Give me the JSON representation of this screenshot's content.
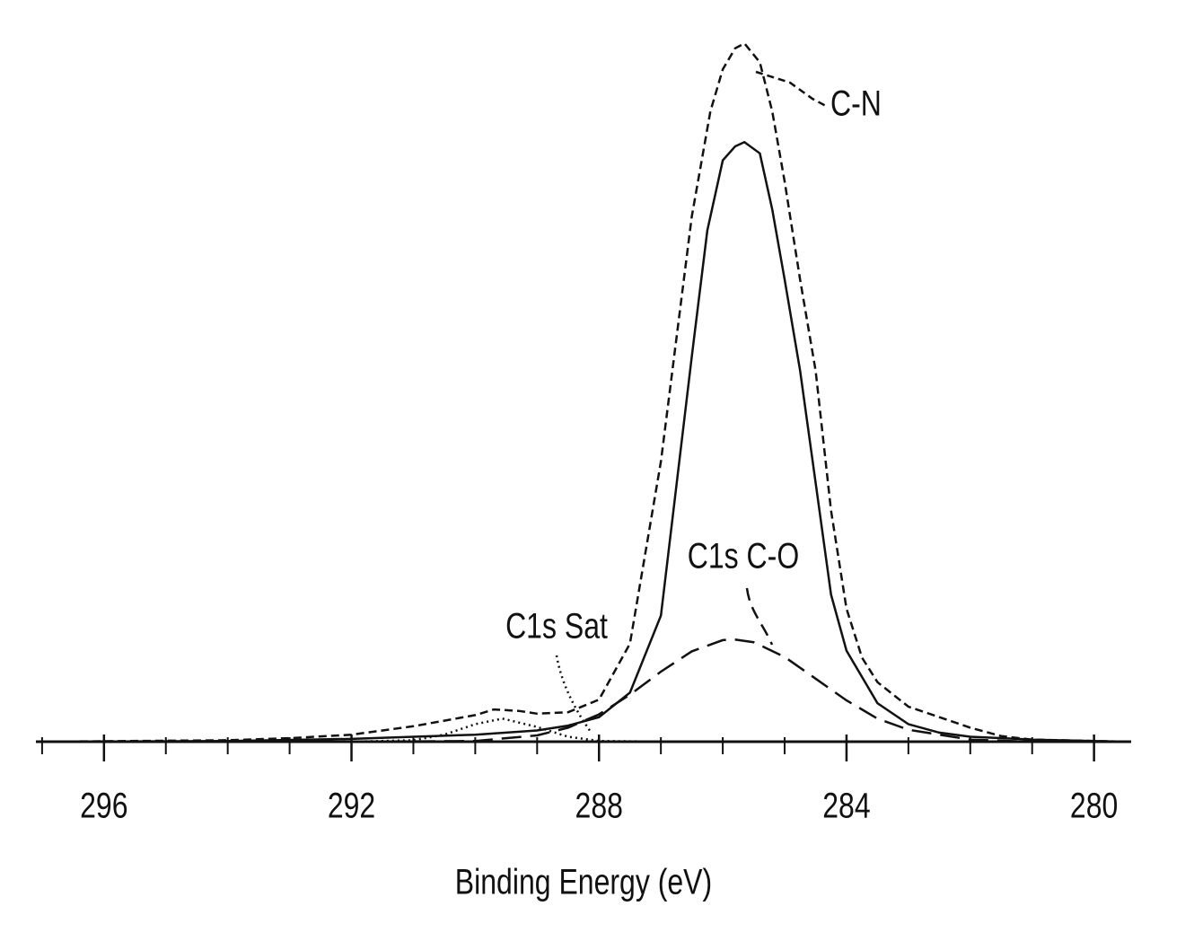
{
  "chart_data": {
    "type": "line",
    "x_label": "Binding Energy (eV)",
    "xlim": [
      297.1,
      279.4
    ],
    "ylim": [
      0,
      100
    ],
    "xticks": [
      296,
      292,
      288,
      284,
      280
    ],
    "xticks_minor": [
      297,
      295,
      294,
      293,
      291,
      290,
      289,
      287,
      286,
      285,
      283,
      282,
      281
    ],
    "color": "#111111",
    "series": [
      {
        "dash": "solid",
        "x": [
          297,
          294,
          292,
          290,
          289,
          288.5,
          288,
          287.5,
          287,
          286.5,
          286.25,
          286,
          285.8,
          285.65,
          285.4,
          285.2,
          285,
          284.75,
          284.5,
          284.25,
          284,
          283.5,
          283,
          282.5,
          282,
          281,
          280,
          279.5
        ],
        "values": [
          0,
          0.1,
          0.4,
          1.0,
          1.6,
          2.3,
          3.5,
          7,
          18,
          55,
          73,
          83,
          85,
          85.6,
          84,
          76,
          66,
          53,
          37,
          21,
          13,
          5.5,
          2.5,
          1.3,
          0.7,
          0.3,
          0.1,
          0
        ]
      },
      {
        "name": "C-N",
        "dash": "short",
        "x": [
          297,
          294,
          293,
          292,
          291,
          290,
          289.7,
          289.3,
          289,
          288.5,
          288,
          287.5,
          287,
          286.5,
          286.2,
          286,
          285.8,
          285.65,
          285.4,
          285.2,
          285,
          284.75,
          284.5,
          284.25,
          284,
          283.75,
          283.5,
          283,
          282.5,
          282,
          281.5,
          281,
          280,
          279.5
        ],
        "values": [
          0,
          0.2,
          0.5,
          1,
          2.2,
          3.8,
          4.6,
          4.4,
          4,
          4.2,
          6,
          14,
          40,
          75,
          90,
          96,
          99,
          99.7,
          97,
          90,
          80,
          66,
          53,
          33,
          19,
          12,
          8.5,
          5,
          3.5,
          2,
          0.8,
          0.3,
          0.1,
          0
        ]
      },
      {
        "name": "C1s C-O",
        "dash": "long",
        "x": [
          297,
          292,
          290,
          289,
          288.5,
          288,
          287.5,
          287,
          286.5,
          286,
          285.82,
          285.5,
          285,
          284.5,
          284,
          283.5,
          283,
          282,
          281,
          280
        ],
        "values": [
          0,
          0,
          0.1,
          0.9,
          2.0,
          3.9,
          6.7,
          10,
          12.9,
          14.5,
          14.6,
          14.2,
          12.1,
          9.0,
          5.9,
          3.3,
          1.7,
          0.3,
          0,
          0
        ]
      },
      {
        "name": "C1s Sat",
        "dash": "dotted",
        "x": [
          297,
          292,
          291,
          290.5,
          290,
          289.56,
          289,
          288.5,
          288,
          287,
          280
        ],
        "values": [
          0,
          0,
          0.2,
          1.0,
          2.5,
          3.3,
          2.1,
          0.7,
          0.1,
          0,
          0
        ]
      }
    ]
  }
}
